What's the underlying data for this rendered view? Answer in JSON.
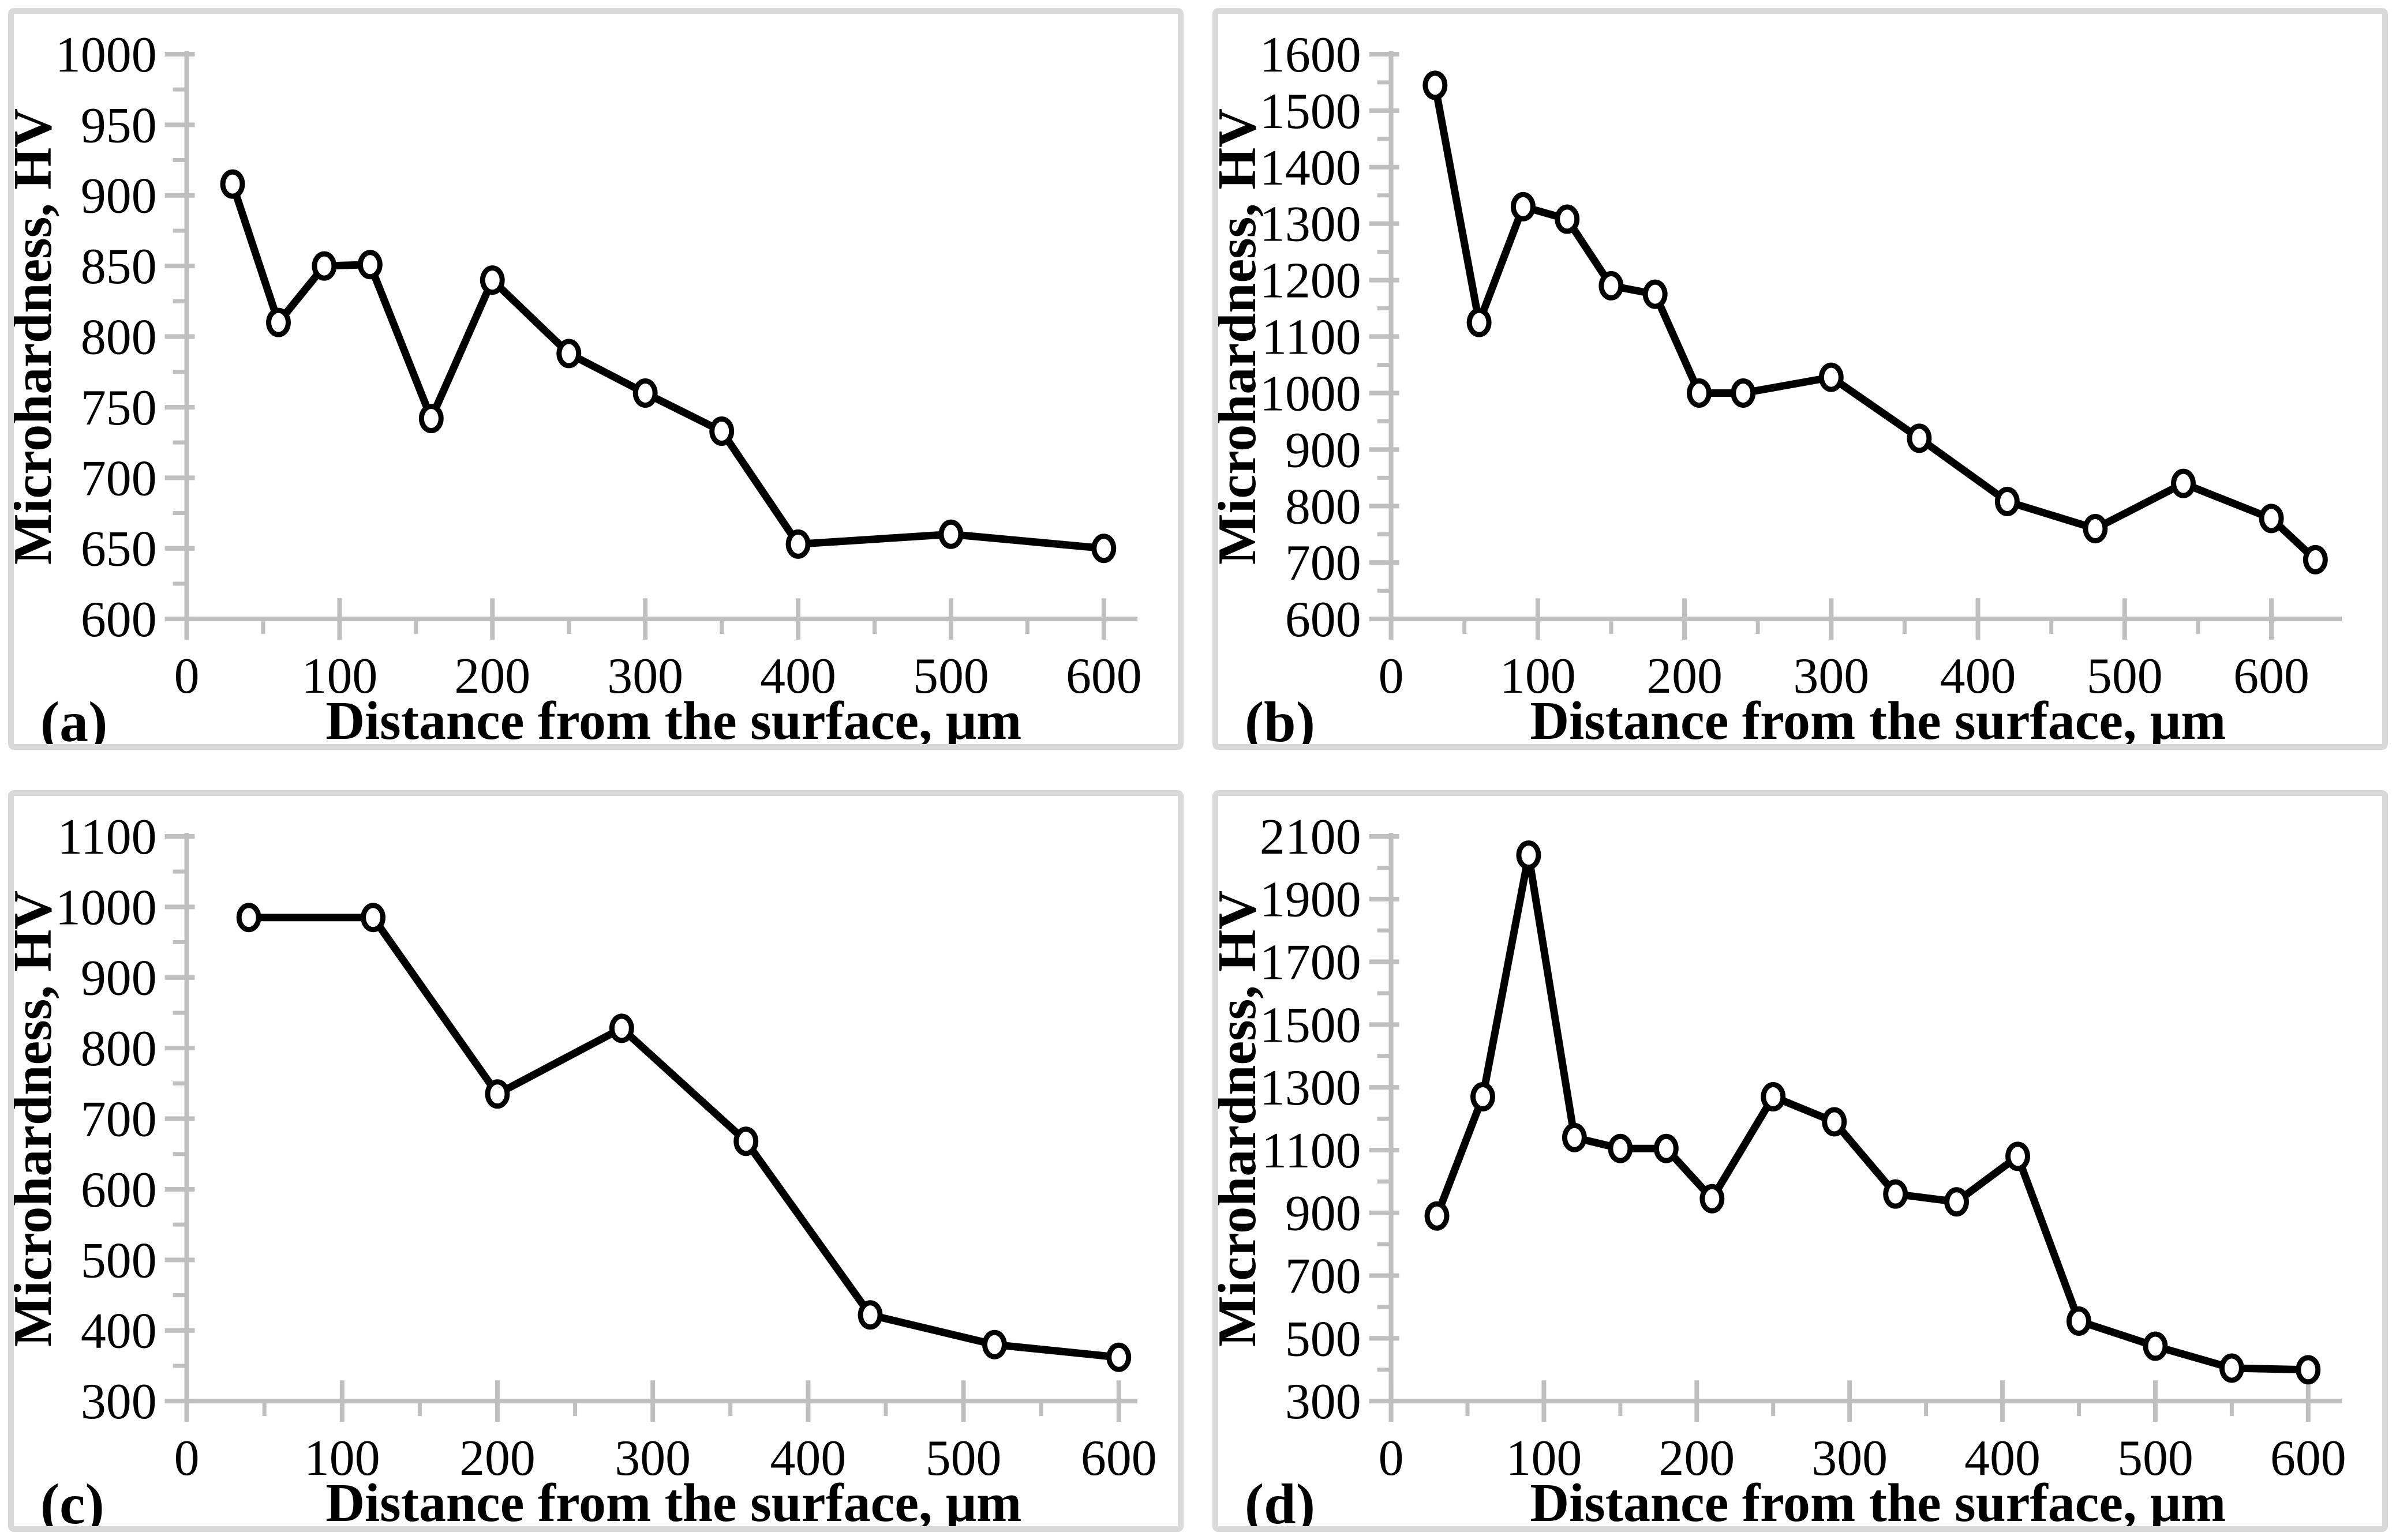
{
  "figure": {
    "background": "#ffffff",
    "colors": {
      "axis_line": "#bfbfbf",
      "panel_border": "#d9d9d9",
      "series_line": "#000000",
      "marker_fill": "#ffffff",
      "marker_stroke": "#000000",
      "text": "#000000"
    },
    "xlabel": "Distance from the surface, μm",
    "ylabel": "Microhardness, HV",
    "panel_letters": [
      "(a)",
      "(b)",
      "(c)",
      "(d)"
    ]
  },
  "chart_data": [
    {
      "type": "line",
      "panel": "(a)",
      "title": "",
      "xlabel": "Distance from the surface, μm",
      "ylabel": "Microhardness, HV",
      "x": [
        30,
        60,
        90,
        120,
        160,
        200,
        250,
        300,
        350,
        400,
        500,
        600
      ],
      "y": [
        908,
        810,
        850,
        851,
        742,
        840,
        788,
        760,
        733,
        653,
        660,
        650
      ],
      "xlim": [
        0,
        622
      ],
      "ylim": [
        600,
        1000
      ],
      "x_ticks": [
        0,
        100,
        200,
        300,
        400,
        500,
        600
      ],
      "y_ticks": [
        600,
        650,
        700,
        750,
        800,
        850,
        900,
        950,
        1000
      ],
      "x_minor_step": 50,
      "y_minor_step": 25,
      "grid": false,
      "legend": "none",
      "marker": "open-circle"
    },
    {
      "type": "line",
      "panel": "(b)",
      "title": "",
      "xlabel": "Distance from the surface, μm",
      "ylabel": "Microhardness, HV",
      "x": [
        30,
        60,
        90,
        120,
        150,
        180,
        210,
        240,
        300,
        360,
        420,
        480,
        540,
        600,
        630
      ],
      "y": [
        1545,
        1125,
        1330,
        1308,
        1190,
        1175,
        1000,
        1000,
        1028,
        920,
        808,
        760,
        840,
        778,
        705
      ],
      "xlim": [
        0,
        648
      ],
      "ylim": [
        600,
        1600
      ],
      "x_ticks": [
        0,
        100,
        200,
        300,
        400,
        500,
        600
      ],
      "y_ticks": [
        600,
        700,
        800,
        900,
        1000,
        1100,
        1200,
        1300,
        1400,
        1500,
        1600
      ],
      "x_minor_step": 50,
      "y_minor_step": 50,
      "grid": false,
      "legend": "none",
      "marker": "open-circle"
    },
    {
      "type": "line",
      "panel": "(c)",
      "title": "",
      "xlabel": "Distance from the surface, μm",
      "ylabel": "Microhardness, HV",
      "x": [
        40,
        120,
        200,
        280,
        360,
        440,
        520,
        600
      ],
      "y": [
        985,
        985,
        735,
        828,
        668,
        422,
        380,
        362
      ],
      "xlim": [
        0,
        612
      ],
      "ylim": [
        300,
        1100
      ],
      "x_ticks": [
        0,
        100,
        200,
        300,
        400,
        500,
        600
      ],
      "y_ticks": [
        300,
        400,
        500,
        600,
        700,
        800,
        900,
        1000,
        1100
      ],
      "x_minor_step": 50,
      "y_minor_step": 50,
      "grid": false,
      "legend": "none",
      "marker": "open-circle"
    },
    {
      "type": "line",
      "panel": "(d)",
      "title": "",
      "xlabel": "Distance from the surface, μm",
      "ylabel": "Microhardness, HV",
      "x": [
        30,
        60,
        90,
        120,
        150,
        180,
        210,
        250,
        290,
        330,
        370,
        410,
        450,
        500,
        550,
        600
      ],
      "y": [
        890,
        1270,
        2040,
        1140,
        1105,
        1105,
        945,
        1270,
        1190,
        960,
        935,
        1080,
        555,
        475,
        405,
        400
      ],
      "xlim": [
        0,
        622
      ],
      "ylim": [
        300,
        2100
      ],
      "x_ticks": [
        0,
        100,
        200,
        300,
        400,
        500,
        600
      ],
      "y_ticks": [
        300,
        500,
        700,
        900,
        1100,
        1300,
        1500,
        1700,
        1900,
        2100
      ],
      "x_minor_step": 50,
      "y_minor_step": 100,
      "grid": false,
      "legend": "none",
      "marker": "open-circle"
    }
  ]
}
